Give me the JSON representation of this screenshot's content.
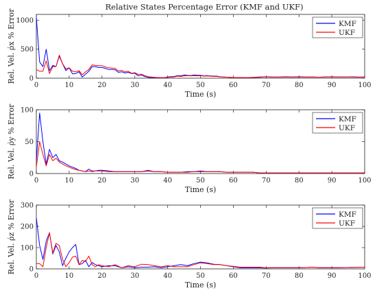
{
  "title": "Relative States Percentage Error (KMF and UKF)",
  "colors": {
    "KMF": "#0000ff",
    "UKF": "#ff0000",
    "axis": "#222222"
  },
  "chart_data": [
    {
      "type": "line",
      "title": "Relative States Percentage Error (KMF and UKF)",
      "xlabel": "Time (s)",
      "ylabel": "Rel. Vel. ρ̇x % Error",
      "xlim": [
        0,
        100
      ],
      "ylim": [
        0,
        1100
      ],
      "xticks": [
        "0",
        "10",
        "20",
        "30",
        "40",
        "50",
        "60",
        "70",
        "80",
        "90",
        "100"
      ],
      "yticks": [
        "0",
        "500",
        "1000"
      ],
      "ytick_values": [
        0,
        500,
        1000
      ],
      "legend": "top-right",
      "grid": false,
      "x": [
        0,
        1,
        2,
        3,
        4,
        5,
        6,
        7,
        8,
        9,
        10,
        11,
        12,
        13,
        14,
        15,
        16,
        17,
        18,
        19,
        20,
        21,
        22,
        23,
        24,
        25,
        26,
        27,
        28,
        29,
        30,
        31,
        32,
        33,
        34,
        35,
        36,
        37,
        38,
        39,
        40,
        41,
        42,
        43,
        44,
        45,
        46,
        47,
        48,
        49,
        50,
        51,
        52,
        53,
        54,
        55,
        56,
        57,
        58,
        59,
        60,
        62,
        64,
        66,
        68,
        70,
        72,
        74,
        76,
        78,
        80,
        82,
        84,
        86,
        88,
        90,
        92,
        94,
        96,
        98,
        100
      ],
      "series": [
        {
          "name": "KMF",
          "values": [
            1050,
            280,
            200,
            500,
            130,
            220,
            200,
            380,
            250,
            130,
            180,
            75,
            80,
            110,
            20,
            70,
            120,
            200,
            200,
            185,
            185,
            170,
            150,
            150,
            145,
            100,
            110,
            90,
            100,
            80,
            85,
            40,
            55,
            30,
            15,
            10,
            10,
            8,
            8,
            8,
            20,
            25,
            30,
            45,
            40,
            55,
            50,
            45,
            55,
            50,
            50,
            40,
            45,
            40,
            35,
            35,
            25,
            20,
            18,
            15,
            12,
            12,
            10,
            15,
            20,
            25,
            20,
            20,
            25,
            20,
            25,
            20,
            20,
            18,
            20,
            20,
            20,
            20,
            20,
            18,
            18
          ]
        },
        {
          "name": "UKF",
          "values": [
            150,
            120,
            120,
            300,
            80,
            200,
            200,
            400,
            250,
            160,
            180,
            120,
            110,
            130,
            60,
            110,
            150,
            230,
            220,
            215,
            215,
            195,
            180,
            175,
            170,
            125,
            135,
            110,
            120,
            85,
            95,
            65,
            70,
            45,
            25,
            20,
            15,
            12,
            10,
            10,
            15,
            18,
            22,
            35,
            30,
            40,
            45,
            40,
            45,
            40,
            42,
            35,
            38,
            35,
            30,
            30,
            22,
            20,
            18,
            15,
            12,
            12,
            10,
            12,
            15,
            22,
            18,
            18,
            20,
            18,
            20,
            18,
            20,
            18,
            22,
            25,
            22,
            20,
            25,
            20,
            20
          ]
        }
      ]
    },
    {
      "type": "line",
      "xlabel": "Time (s)",
      "ylabel": "Rel. Vel. ρ̇y % Error",
      "xlim": [
        0,
        100
      ],
      "ylim": [
        0,
        100
      ],
      "xticks": [
        "0",
        "10",
        "20",
        "30",
        "40",
        "50",
        "60",
        "70",
        "80",
        "90",
        "100"
      ],
      "yticks": [
        "0",
        "50",
        "100"
      ],
      "ytick_values": [
        0,
        50,
        100
      ],
      "legend": "top-right",
      "grid": false,
      "x": [
        0,
        1,
        2,
        3,
        4,
        5,
        6,
        7,
        8,
        9,
        10,
        11,
        12,
        13,
        14,
        15,
        16,
        17,
        18,
        19,
        20,
        22,
        24,
        26,
        28,
        30,
        32,
        34,
        36,
        38,
        40,
        42,
        44,
        46,
        48,
        50,
        52,
        54,
        56,
        58,
        60,
        62,
        64,
        66,
        68,
        70,
        75,
        80,
        85,
        90,
        95,
        100
      ],
      "series": [
        {
          "name": "KMF",
          "values": [
            20,
            95,
            50,
            15,
            38,
            25,
            30,
            20,
            18,
            15,
            12,
            10,
            8,
            5,
            4,
            3,
            7,
            4,
            4,
            5,
            5,
            4,
            3,
            3,
            3,
            3,
            3,
            4,
            3,
            3,
            2,
            2,
            2,
            3,
            3,
            4,
            3,
            3,
            3,
            2,
            2,
            2,
            2,
            2,
            1,
            1,
            1,
            1,
            1,
            1,
            1,
            1
          ]
        },
        {
          "name": "UKF",
          "values": [
            10,
            50,
            30,
            12,
            30,
            20,
            24,
            18,
            15,
            12,
            10,
            8,
            6,
            5,
            4,
            3,
            4,
            3,
            4,
            4,
            4,
            3,
            3,
            3,
            3,
            3,
            3,
            5,
            3,
            3,
            2,
            2,
            2,
            2,
            3,
            3,
            3,
            3,
            3,
            2,
            2,
            2,
            2,
            2,
            1,
            1,
            1,
            1,
            1,
            1,
            1,
            1
          ]
        }
      ]
    },
    {
      "type": "line",
      "xlabel": "Time (s)",
      "ylabel": "Rel. Vel. ρ̇z % Error",
      "xlim": [
        0,
        100
      ],
      "ylim": [
        0,
        300
      ],
      "xticks": [
        "0",
        "10",
        "20",
        "30",
        "40",
        "50",
        "60",
        "70",
        "80",
        "90",
        "100"
      ],
      "yticks": [
        "0",
        "100",
        "200",
        "300"
      ],
      "ytick_values": [
        0,
        100,
        200,
        300
      ],
      "legend": "top-right",
      "grid": false,
      "x": [
        0,
        1,
        2,
        3,
        4,
        5,
        6,
        7,
        8,
        9,
        10,
        11,
        12,
        13,
        14,
        15,
        16,
        17,
        18,
        19,
        20,
        22,
        24,
        26,
        28,
        30,
        32,
        34,
        36,
        38,
        40,
        42,
        44,
        46,
        48,
        50,
        52,
        54,
        56,
        58,
        60,
        62,
        64,
        66,
        68,
        70,
        72,
        74,
        76,
        78,
        80,
        82,
        84,
        86,
        88,
        90,
        92,
        94,
        96,
        98,
        100
      ],
      "series": [
        {
          "name": "KMF",
          "values": [
            240,
            110,
            45,
            130,
            170,
            70,
            110,
            80,
            15,
            50,
            80,
            100,
            115,
            20,
            25,
            40,
            10,
            30,
            20,
            15,
            10,
            15,
            15,
            5,
            10,
            5,
            8,
            8,
            10,
            5,
            10,
            15,
            20,
            15,
            25,
            32,
            28,
            22,
            20,
            15,
            10,
            5,
            5,
            5,
            5,
            4,
            5,
            5,
            5,
            5,
            5,
            6,
            8,
            5,
            5,
            5,
            5,
            6,
            7,
            7,
            8
          ]
        },
        {
          "name": "UKF",
          "values": [
            25,
            25,
            10,
            100,
            170,
            75,
            120,
            110,
            45,
            10,
            30,
            55,
            60,
            20,
            40,
            35,
            60,
            20,
            10,
            20,
            15,
            10,
            20,
            5,
            15,
            10,
            22,
            20,
            15,
            10,
            15,
            10,
            10,
            10,
            20,
            28,
            25,
            20,
            20,
            15,
            12,
            8,
            8,
            8,
            8,
            5,
            6,
            6,
            6,
            6,
            6,
            6,
            8,
            6,
            6,
            6,
            6,
            6,
            6,
            7,
            8
          ]
        }
      ]
    }
  ]
}
